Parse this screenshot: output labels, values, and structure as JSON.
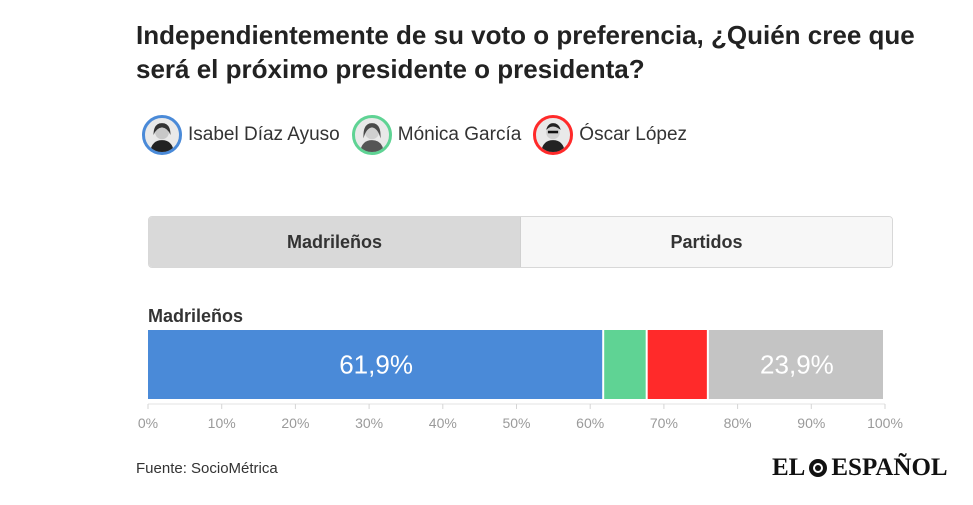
{
  "title": "Independientemente de su voto o preferencia, ¿Quién cree que será el próximo presidente o presidenta?",
  "legend": [
    {
      "name": "Isabel Díaz Ayuso",
      "color": "#4a8ad8"
    },
    {
      "name": "Mónica García",
      "color": "#5fd394"
    },
    {
      "name": "Óscar López",
      "color": "#ff2a2a"
    }
  ],
  "tabs": {
    "madrilenos": "Madrileños",
    "partidos": "Partidos"
  },
  "group_label": "Madrileños",
  "chart_data": {
    "type": "bar",
    "orientation": "horizontal-stacked-percent",
    "categories": [
      "Madrileños"
    ],
    "series": [
      {
        "name": "Isabel Díaz Ayuso",
        "values": [
          61.9
        ],
        "color": "#4a8ad8",
        "label": "61,9%"
      },
      {
        "name": "Mónica García",
        "values": [
          5.9
        ],
        "color": "#5fd394",
        "label": ""
      },
      {
        "name": "Óscar López",
        "values": [
          8.3
        ],
        "color": "#ff2a2a",
        "label": ""
      },
      {
        "values": [
          23.9
        ],
        "color": "#c4c4c4",
        "label": "23,9%"
      }
    ],
    "xlim": [
      0,
      100
    ],
    "x_ticks": [
      "0%",
      "10%",
      "20%",
      "30%",
      "40%",
      "50%",
      "60%",
      "70%",
      "80%",
      "90%",
      "100%"
    ]
  },
  "source": "Fuente: SocioMétrica",
  "brand": {
    "left": "EL",
    "right": "ESPAÑOL"
  }
}
